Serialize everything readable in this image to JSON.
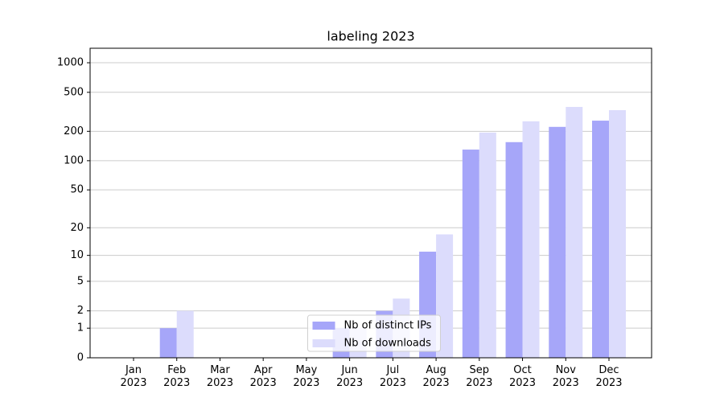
{
  "chart_data": {
    "type": "bar",
    "title": "labeling 2023",
    "categories": [
      "Jan\n2023",
      "Feb\n2023",
      "Mar\n2023",
      "Apr\n2023",
      "May\n2023",
      "Jun\n2023",
      "Jul\n2023",
      "Aug\n2023",
      "Sep\n2023",
      "Oct\n2023",
      "Nov\n2023",
      "Dec\n2023"
    ],
    "series": [
      {
        "name": "Nb of distinct IPs",
        "color": "#a6a6f9",
        "values": [
          0,
          1,
          0,
          0,
          0,
          1,
          2,
          11,
          130,
          155,
          222,
          257
        ]
      },
      {
        "name": "Nb of downloads",
        "color": "#dcdcfc",
        "values": [
          0,
          2,
          0,
          0,
          0,
          1,
          3,
          17,
          194,
          253,
          355,
          329
        ]
      }
    ],
    "yscale": "log1p",
    "ylim": [
      0,
      1405
    ],
    "yticks": [
      0,
      1,
      2,
      5,
      10,
      20,
      50,
      100,
      200,
      500,
      1000
    ],
    "grid": true,
    "legend": "lower center"
  }
}
